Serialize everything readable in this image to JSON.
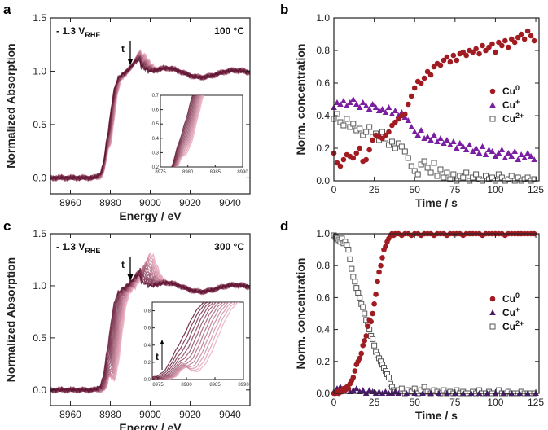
{
  "chart_data": [
    {
      "panel": "a",
      "type": "line",
      "xlabel": "Energy / eV",
      "ylabel": "Normalized Absorption",
      "xlim": [
        8950,
        9050
      ],
      "ylim": [
        -0.15,
        1.5
      ],
      "xticks": [
        8960,
        8980,
        9000,
        9020,
        9040
      ],
      "yticks": [
        0.0,
        0.5,
        1.0,
        1.5
      ],
      "ytick_labels": [
        "0.0",
        "0.5",
        "1.0",
        "1.5"
      ],
      "potential_label": "- 1.3 V",
      "potential_subscript": "RHE",
      "temperature_label": "100 °C",
      "time_arrow_label": "t",
      "series_count": 12,
      "edge_shift_ev": 2,
      "inset": {
        "xlim": [
          8975,
          8990
        ],
        "ylim": [
          0.2,
          0.7
        ],
        "xticks": [
          8975,
          8980,
          8985,
          8990
        ],
        "yticks": [
          0.2,
          0.3,
          0.4,
          0.5,
          0.6,
          0.7
        ],
        "ytick_labels": [
          "0.2",
          "0.3",
          "0.4",
          "0.5",
          "0.6",
          "0.7"
        ]
      }
    },
    {
      "panel": "b",
      "type": "scatter",
      "xlabel": "Time / s",
      "ylabel": "Norm. concentration",
      "xlim": [
        0,
        127
      ],
      "ylim": [
        0,
        1.0
      ],
      "xticks": [
        0,
        25,
        50,
        75,
        100,
        125
      ],
      "yticks": [
        0.0,
        0.2,
        0.4,
        0.6,
        0.8,
        1.0
      ],
      "ytick_labels": [
        "0.0",
        "0.2",
        "0.4",
        "0.6",
        "0.8",
        "1.0"
      ],
      "series": [
        {
          "name": "Cu",
          "sup": "0",
          "marker": "circle",
          "color": "#a01c22",
          "x": [
            0,
            2,
            4,
            6,
            8,
            10,
            12,
            14,
            16,
            18,
            20,
            22,
            24,
            26,
            28,
            30,
            32,
            34,
            36,
            38,
            40,
            42,
            44,
            46,
            48,
            50,
            52,
            54,
            56,
            58,
            60,
            62,
            64,
            66,
            68,
            70,
            72,
            74,
            76,
            78,
            80,
            82,
            84,
            86,
            88,
            90,
            92,
            94,
            96,
            98,
            100,
            102,
            104,
            106,
            108,
            110,
            112,
            114,
            116,
            118,
            120,
            122,
            124
          ],
          "values": [
            0.17,
            0.11,
            0.09,
            0.13,
            0.16,
            0.15,
            0.14,
            0.17,
            0.2,
            0.12,
            0.13,
            0.19,
            0.25,
            0.28,
            0.27,
            0.26,
            0.28,
            0.3,
            0.34,
            0.36,
            0.38,
            0.4,
            0.41,
            0.47,
            0.52,
            0.57,
            0.61,
            0.6,
            0.63,
            0.67,
            0.65,
            0.7,
            0.72,
            0.71,
            0.74,
            0.76,
            0.73,
            0.77,
            0.74,
            0.78,
            0.79,
            0.77,
            0.8,
            0.79,
            0.81,
            0.78,
            0.83,
            0.8,
            0.82,
            0.84,
            0.79,
            0.85,
            0.83,
            0.86,
            0.82,
            0.87,
            0.85,
            0.88,
            0.9,
            0.87,
            0.92,
            0.89,
            0.86
          ]
        },
        {
          "name": "Cu",
          "sup": "+",
          "marker": "triangle",
          "color": "#7b1fa2",
          "x": [
            0,
            2,
            4,
            6,
            8,
            10,
            12,
            14,
            16,
            18,
            20,
            22,
            24,
            26,
            28,
            30,
            32,
            34,
            36,
            38,
            40,
            42,
            44,
            46,
            48,
            50,
            52,
            54,
            56,
            58,
            60,
            62,
            64,
            66,
            68,
            70,
            72,
            74,
            76,
            78,
            80,
            82,
            84,
            86,
            88,
            90,
            92,
            94,
            96,
            98,
            100,
            102,
            104,
            106,
            108,
            110,
            112,
            114,
            116,
            118,
            120,
            122,
            124
          ],
          "values": [
            0.45,
            0.48,
            0.47,
            0.49,
            0.46,
            0.48,
            0.5,
            0.47,
            0.45,
            0.48,
            0.46,
            0.44,
            0.47,
            0.45,
            0.43,
            0.44,
            0.42,
            0.45,
            0.41,
            0.43,
            0.4,
            0.42,
            0.39,
            0.37,
            0.33,
            0.3,
            0.28,
            0.31,
            0.26,
            0.27,
            0.25,
            0.28,
            0.24,
            0.26,
            0.23,
            0.25,
            0.22,
            0.24,
            0.2,
            0.23,
            0.21,
            0.19,
            0.22,
            0.18,
            0.2,
            0.17,
            0.21,
            0.16,
            0.19,
            0.18,
            0.15,
            0.17,
            0.19,
            0.14,
            0.17,
            0.15,
            0.18,
            0.13,
            0.16,
            0.14,
            0.17,
            0.15,
            0.13
          ]
        },
        {
          "name": "Cu",
          "sup": "2+",
          "marker": "square",
          "color": "#555555",
          "x": [
            0,
            2,
            4,
            6,
            8,
            10,
            12,
            14,
            16,
            18,
            20,
            22,
            24,
            26,
            28,
            30,
            32,
            34,
            36,
            38,
            40,
            42,
            44,
            46,
            48,
            50,
            52,
            54,
            56,
            58,
            60,
            62,
            64,
            66,
            68,
            70,
            72,
            74,
            76,
            78,
            80,
            82,
            84,
            86,
            88,
            90,
            92,
            94,
            96,
            98,
            100,
            102,
            104,
            106,
            108,
            110,
            112,
            114,
            116,
            118,
            120,
            122,
            124
          ],
          "values": [
            0.38,
            0.41,
            0.36,
            0.34,
            0.38,
            0.33,
            0.35,
            0.31,
            0.32,
            0.28,
            0.3,
            0.33,
            0.27,
            0.29,
            0.25,
            0.3,
            0.26,
            0.22,
            0.24,
            0.2,
            0.23,
            0.21,
            0.18,
            0.14,
            0.09,
            0.06,
            0.04,
            0.1,
            0.12,
            0.08,
            0.05,
            0.11,
            0.03,
            0.07,
            0.02,
            0.05,
            0.01,
            0.04,
            0.0,
            0.03,
            0.02,
            0.05,
            0.0,
            0.02,
            0.04,
            0.01,
            0.0,
            0.03,
            0.01,
            0.02,
            0.0,
            0.04,
            0.02,
            0.0,
            0.01,
            0.03,
            0.0,
            0.02,
            0.0,
            0.01,
            0.02,
            0.0,
            0.01
          ]
        }
      ],
      "legend": "center-right"
    },
    {
      "panel": "c",
      "type": "line",
      "xlabel": "Energy / eV",
      "ylabel": "Normalized Absorption",
      "xlim": [
        8950,
        9050
      ],
      "ylim": [
        -0.15,
        1.5
      ],
      "xticks": [
        8960,
        8980,
        9000,
        9020,
        9040
      ],
      "yticks": [
        0.0,
        0.5,
        1.0,
        1.5
      ],
      "ytick_labels": [
        "0.0",
        "0.5",
        "1.0",
        "1.5"
      ],
      "potential_label": "- 1.3 V",
      "potential_subscript": "RHE",
      "temperature_label": "300 °C",
      "time_arrow_label": "t",
      "series_count": 12,
      "edge_shift_ev": 6,
      "inset": {
        "xlim": [
          8974,
          8990
        ],
        "ylim": [
          0.0,
          0.9
        ],
        "xticks": [
          8975,
          8980,
          8985,
          8990
        ],
        "yticks": [
          0.0,
          0.2,
          0.4,
          0.6,
          0.8
        ],
        "ytick_labels": [
          "0.0",
          "0.2",
          "0.4",
          "0.6",
          "0.8"
        ],
        "time_arrow_label": "t"
      }
    },
    {
      "panel": "d",
      "type": "scatter",
      "xlabel": "Time / s",
      "ylabel": "Norm. concentration",
      "xlim": [
        0,
        127
      ],
      "ylim": [
        0,
        1.0
      ],
      "xticks": [
        0,
        25,
        50,
        75,
        100,
        125
      ],
      "yticks": [
        0.0,
        0.2,
        0.4,
        0.6,
        0.8,
        1.0
      ],
      "ytick_labels": [
        "0.0",
        "0.2",
        "0.4",
        "0.6",
        "0.8",
        "1.0"
      ],
      "series": [
        {
          "name": "Cu",
          "sup": "0",
          "marker": "circle",
          "color": "#a01c22",
          "x": [
            0,
            1,
            2,
            3,
            4,
            5,
            6,
            7,
            8,
            9,
            10,
            11,
            12,
            13,
            14,
            15,
            16,
            17,
            18,
            19,
            20,
            21,
            22,
            23,
            24,
            25,
            26,
            27,
            28,
            29,
            30,
            31,
            32,
            33,
            34,
            35,
            36,
            37,
            38,
            40,
            42,
            44,
            46,
            48,
            50,
            52,
            54,
            56,
            58,
            60,
            62,
            64,
            66,
            68,
            70,
            72,
            74,
            76,
            78,
            80,
            82,
            84,
            86,
            88,
            90,
            92,
            94,
            96,
            98,
            100,
            102,
            104,
            106,
            108,
            110,
            112,
            114,
            116,
            118,
            120,
            122,
            124
          ],
          "values": [
            0.0,
            0.0,
            0.01,
            0.0,
            0.02,
            0.01,
            0.03,
            0.02,
            0.04,
            0.03,
            0.06,
            0.08,
            0.1,
            0.14,
            0.18,
            0.2,
            0.22,
            0.25,
            0.3,
            0.33,
            0.36,
            0.42,
            0.46,
            0.45,
            0.5,
            0.56,
            0.62,
            0.7,
            0.76,
            0.8,
            0.85,
            0.9,
            0.92,
            0.95,
            0.97,
            0.99,
            1.0,
            0.99,
            1.0,
            1.0,
            0.99,
            1.0,
            1.0,
            0.99,
            1.0,
            1.0,
            0.99,
            1.0,
            1.0,
            1.0,
            0.99,
            1.0,
            1.0,
            1.0,
            0.99,
            1.0,
            1.0,
            1.0,
            1.0,
            0.99,
            1.0,
            1.0,
            1.0,
            1.0,
            1.0,
            0.99,
            1.0,
            1.0,
            1.0,
            1.0,
            1.0,
            1.0,
            0.99,
            1.0,
            1.0,
            1.0,
            1.0,
            1.0,
            1.0,
            1.0,
            1.0,
            1.0
          ]
        },
        {
          "name": "Cu",
          "sup": "+",
          "marker": "triangle",
          "color": "#4a1a6b",
          "x": [
            0,
            2,
            4,
            6,
            8,
            10,
            12,
            14,
            16,
            18,
            20,
            22,
            24,
            26,
            28,
            30,
            32,
            34,
            36,
            38,
            40,
            45,
            50,
            55,
            60,
            65,
            70,
            75,
            80,
            85,
            90,
            95,
            100,
            105,
            110,
            115,
            120,
            125
          ],
          "values": [
            0.01,
            0.03,
            0.04,
            0.02,
            0.03,
            0.01,
            0.02,
            0.03,
            0.01,
            0.02,
            0.0,
            0.02,
            0.01,
            0.0,
            0.01,
            0.0,
            0.01,
            0.0,
            0.0,
            0.01,
            0.0,
            0.0,
            0.0,
            0.0,
            0.0,
            0.0,
            0.0,
            0.0,
            0.0,
            0.0,
            0.0,
            0.0,
            0.0,
            0.0,
            0.0,
            0.0,
            0.0,
            0.0
          ]
        },
        {
          "name": "Cu",
          "sup": "2+",
          "marker": "square",
          "color": "#555555",
          "x": [
            0,
            1,
            2,
            3,
            4,
            5,
            6,
            7,
            8,
            9,
            10,
            11,
            12,
            13,
            14,
            15,
            16,
            17,
            18,
            19,
            20,
            21,
            22,
            23,
            24,
            25,
            26,
            27,
            28,
            29,
            30,
            31,
            32,
            33,
            34,
            35,
            36,
            37,
            38,
            40,
            42,
            44,
            46,
            48,
            50,
            52,
            54,
            56,
            58,
            60,
            62,
            64,
            66,
            68,
            70,
            72,
            74,
            76,
            78,
            80,
            82,
            84,
            86,
            88,
            90,
            92,
            94,
            96,
            98,
            100,
            102,
            104,
            106,
            108,
            110,
            112,
            114,
            116,
            118,
            120,
            122,
            124
          ],
          "values": [
            0.99,
            0.98,
            0.97,
            0.96,
            0.95,
            0.97,
            0.94,
            0.95,
            0.93,
            0.9,
            0.84,
            0.78,
            0.73,
            0.7,
            0.66,
            0.63,
            0.6,
            0.56,
            0.54,
            0.5,
            0.46,
            0.43,
            0.4,
            0.36,
            0.34,
            0.3,
            0.26,
            0.24,
            0.22,
            0.2,
            0.18,
            0.16,
            0.14,
            0.12,
            0.1,
            0.06,
            0.04,
            0.02,
            0.01,
            0.02,
            0.03,
            0.0,
            0.02,
            0.01,
            0.03,
            0.0,
            0.02,
            0.04,
            0.01,
            0.0,
            0.02,
            0.01,
            0.0,
            0.02,
            0.0,
            0.01,
            0.0,
            0.02,
            0.0,
            0.01,
            0.0,
            0.0,
            0.01,
            0.0,
            0.02,
            0.0,
            0.0,
            0.01,
            0.0,
            0.0,
            0.02,
            0.0,
            0.0,
            0.01,
            0.0,
            0.0,
            0.0,
            0.01,
            0.0,
            0.0,
            0.0,
            0.0
          ]
        }
      ],
      "legend": "center-right"
    }
  ]
}
